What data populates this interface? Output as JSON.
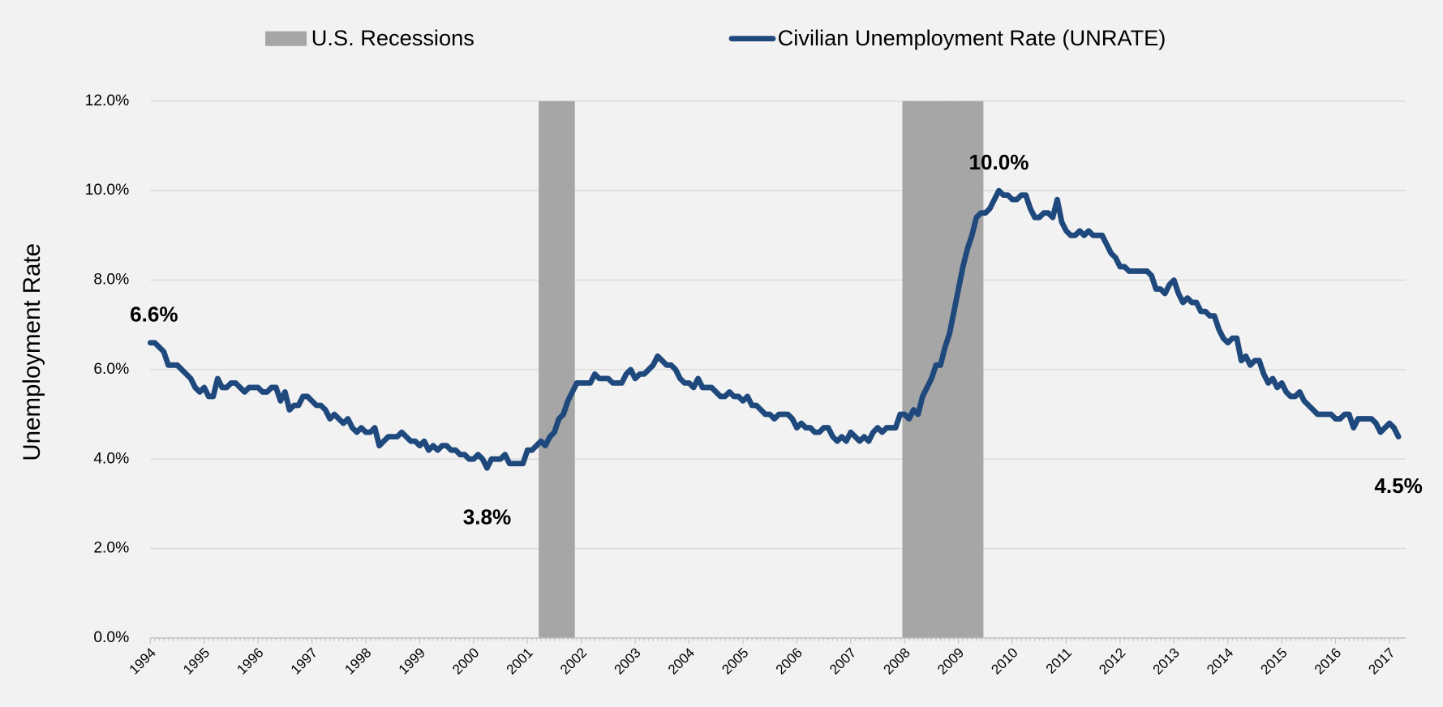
{
  "chart_data": {
    "type": "line",
    "y_label": "Unemployment Rate",
    "categories": [
      "1994",
      null,
      null,
      null,
      null,
      null,
      null,
      null,
      null,
      null,
      null,
      null,
      "1995",
      null,
      null,
      null,
      null,
      null,
      null,
      null,
      null,
      null,
      null,
      null,
      "1996",
      null,
      null,
      null,
      null,
      null,
      null,
      null,
      null,
      null,
      null,
      null,
      "1997",
      null,
      null,
      null,
      null,
      null,
      null,
      null,
      null,
      null,
      null,
      null,
      "1998",
      null,
      null,
      null,
      null,
      null,
      null,
      null,
      null,
      null,
      null,
      null,
      "1999",
      null,
      null,
      null,
      null,
      null,
      null,
      null,
      null,
      null,
      null,
      null,
      "2000",
      null,
      null,
      null,
      null,
      null,
      null,
      null,
      null,
      null,
      null,
      null,
      "2001",
      null,
      null,
      null,
      null,
      null,
      null,
      null,
      null,
      null,
      null,
      null,
      "2002",
      null,
      null,
      null,
      null,
      null,
      null,
      null,
      null,
      null,
      null,
      null,
      "2003",
      null,
      null,
      null,
      null,
      null,
      null,
      null,
      null,
      null,
      null,
      null,
      "2004",
      null,
      null,
      null,
      null,
      null,
      null,
      null,
      null,
      null,
      null,
      null,
      "2005",
      null,
      null,
      null,
      null,
      null,
      null,
      null,
      null,
      null,
      null,
      null,
      "2006",
      null,
      null,
      null,
      null,
      null,
      null,
      null,
      null,
      null,
      null,
      null,
      "2007",
      null,
      null,
      null,
      null,
      null,
      null,
      null,
      null,
      null,
      null,
      null,
      "2008",
      null,
      null,
      null,
      null,
      null,
      null,
      null,
      null,
      null,
      null,
      null,
      "2009",
      null,
      null,
      null,
      null,
      null,
      null,
      null,
      null,
      null,
      null,
      null,
      "2010",
      null,
      null,
      null,
      null,
      null,
      null,
      null,
      null,
      null,
      null,
      null,
      "2011",
      null,
      null,
      null,
      null,
      null,
      null,
      null,
      null,
      null,
      null,
      null,
      "2012",
      null,
      null,
      null,
      null,
      null,
      null,
      null,
      null,
      null,
      null,
      null,
      "2013",
      null,
      null,
      null,
      null,
      null,
      null,
      null,
      null,
      null,
      null,
      null,
      "2014",
      null,
      null,
      null,
      null,
      null,
      null,
      null,
      null,
      null,
      null,
      null,
      "2015",
      null,
      null,
      null,
      null,
      null,
      null,
      null,
      null,
      null,
      null,
      null,
      "2016",
      null,
      null,
      null,
      null,
      null,
      null,
      null,
      null,
      null,
      null,
      null,
      "2017",
      null,
      null
    ],
    "series": [
      {
        "name": "U.S. Recessions",
        "type": "bar",
        "color": "#a6a6a6",
        "values": [
          0,
          0,
          0,
          0,
          0,
          0,
          0,
          0,
          0,
          0,
          0,
          0,
          0,
          0,
          0,
          0,
          0,
          0,
          0,
          0,
          0,
          0,
          0,
          0,
          0,
          0,
          0,
          0,
          0,
          0,
          0,
          0,
          0,
          0,
          0,
          0,
          0,
          0,
          0,
          0,
          0,
          0,
          0,
          0,
          0,
          0,
          0,
          0,
          0,
          0,
          0,
          0,
          0,
          0,
          0,
          0,
          0,
          0,
          0,
          0,
          0,
          0,
          0,
          0,
          0,
          0,
          0,
          0,
          0,
          0,
          0,
          0,
          0,
          0,
          0,
          0,
          0,
          0,
          0,
          0,
          0,
          0,
          0,
          0,
          0,
          0,
          0,
          1,
          1,
          1,
          1,
          1,
          1,
          1,
          1,
          0,
          0,
          0,
          0,
          0,
          0,
          0,
          0,
          0,
          0,
          0,
          0,
          0,
          0,
          0,
          0,
          0,
          0,
          0,
          0,
          0,
          0,
          0,
          0,
          0,
          0,
          0,
          0,
          0,
          0,
          0,
          0,
          0,
          0,
          0,
          0,
          0,
          0,
          0,
          0,
          0,
          0,
          0,
          0,
          0,
          0,
          0,
          0,
          0,
          0,
          0,
          0,
          0,
          0,
          0,
          0,
          0,
          0,
          0,
          0,
          0,
          0,
          0,
          0,
          0,
          0,
          0,
          0,
          0,
          0,
          0,
          0,
          0,
          1,
          1,
          1,
          1,
          1,
          1,
          1,
          1,
          1,
          1,
          1,
          1,
          1,
          1,
          1,
          1,
          1,
          1,
          0,
          0,
          0,
          0,
          0,
          0,
          0,
          0,
          0,
          0,
          0,
          0,
          0,
          0,
          0,
          0,
          0,
          0,
          0,
          0,
          0,
          0,
          0,
          0,
          0,
          0,
          0,
          0,
          0,
          0,
          0,
          0,
          0,
          0,
          0,
          0,
          0,
          0,
          0,
          0,
          0,
          0,
          0,
          0,
          0,
          0,
          0,
          0,
          0,
          0,
          0,
          0,
          0,
          0,
          0,
          0,
          0,
          0,
          0,
          0,
          0,
          0,
          0,
          0,
          0,
          0,
          0,
          0,
          0,
          0,
          0,
          0,
          0,
          0,
          0,
          0,
          0,
          0,
          0,
          0,
          0,
          0,
          0,
          0,
          0,
          0,
          0,
          0,
          0,
          0,
          0,
          0,
          0
        ]
      },
      {
        "name": "Civilian Unemployment Rate (UNRATE)",
        "type": "line",
        "color": "#1f497d",
        "values": [
          6.6,
          6.6,
          6.5,
          6.4,
          6.1,
          6.1,
          6.1,
          6.0,
          5.9,
          5.8,
          5.6,
          5.5,
          5.6,
          5.4,
          5.4,
          5.8,
          5.6,
          5.6,
          5.7,
          5.7,
          5.6,
          5.5,
          5.6,
          5.6,
          5.6,
          5.5,
          5.5,
          5.6,
          5.6,
          5.3,
          5.5,
          5.1,
          5.2,
          5.2,
          5.4,
          5.4,
          5.3,
          5.2,
          5.2,
          5.1,
          4.9,
          5.0,
          4.9,
          4.8,
          4.9,
          4.7,
          4.6,
          4.7,
          4.6,
          4.6,
          4.7,
          4.3,
          4.4,
          4.5,
          4.5,
          4.5,
          4.6,
          4.5,
          4.4,
          4.4,
          4.3,
          4.4,
          4.2,
          4.3,
          4.2,
          4.3,
          4.3,
          4.2,
          4.2,
          4.1,
          4.1,
          4.0,
          4.0,
          4.1,
          4.0,
          3.8,
          4.0,
          4.0,
          4.0,
          4.1,
          3.9,
          3.9,
          3.9,
          3.9,
          4.2,
          4.2,
          4.3,
          4.4,
          4.3,
          4.5,
          4.6,
          4.9,
          5.0,
          5.3,
          5.5,
          5.7,
          5.7,
          5.7,
          5.7,
          5.9,
          5.8,
          5.8,
          5.8,
          5.7,
          5.7,
          5.7,
          5.9,
          6.0,
          5.8,
          5.9,
          5.9,
          6.0,
          6.1,
          6.3,
          6.2,
          6.1,
          6.1,
          6.0,
          5.8,
          5.7,
          5.7,
          5.6,
          5.8,
          5.6,
          5.6,
          5.6,
          5.5,
          5.4,
          5.4,
          5.5,
          5.4,
          5.4,
          5.3,
          5.4,
          5.2,
          5.2,
          5.1,
          5.0,
          5.0,
          4.9,
          5.0,
          5.0,
          5.0,
          4.9,
          4.7,
          4.8,
          4.7,
          4.7,
          4.6,
          4.6,
          4.7,
          4.7,
          4.5,
          4.4,
          4.5,
          4.4,
          4.6,
          4.5,
          4.4,
          4.5,
          4.4,
          4.6,
          4.7,
          4.6,
          4.7,
          4.7,
          4.7,
          5.0,
          5.0,
          4.9,
          5.1,
          5.0,
          5.4,
          5.6,
          5.8,
          6.1,
          6.1,
          6.5,
          6.8,
          7.3,
          7.8,
          8.3,
          8.7,
          9.0,
          9.4,
          9.5,
          9.5,
          9.6,
          9.8,
          10.0,
          9.9,
          9.9,
          9.8,
          9.8,
          9.9,
          9.9,
          9.6,
          9.4,
          9.4,
          9.5,
          9.5,
          9.4,
          9.8,
          9.3,
          9.1,
          9.0,
          9.0,
          9.1,
          9.0,
          9.1,
          9.0,
          9.0,
          9.0,
          8.8,
          8.6,
          8.5,
          8.3,
          8.3,
          8.2,
          8.2,
          8.2,
          8.2,
          8.2,
          8.1,
          7.8,
          7.8,
          7.7,
          7.9,
          8.0,
          7.7,
          7.5,
          7.6,
          7.5,
          7.5,
          7.3,
          7.3,
          7.2,
          7.2,
          6.9,
          6.7,
          6.6,
          6.7,
          6.7,
          6.2,
          6.3,
          6.1,
          6.2,
          6.2,
          5.9,
          5.7,
          5.8,
          5.6,
          5.7,
          5.5,
          5.4,
          5.4,
          5.5,
          5.3,
          5.2,
          5.1,
          5.0,
          5.0,
          5.0,
          5.0,
          4.9,
          4.9,
          5.0,
          5.0,
          4.7,
          4.9,
          4.9,
          4.9,
          4.9,
          4.8,
          4.6,
          4.7,
          4.8,
          4.7,
          4.5
        ],
        "value_labels": [
          "6.6%",
          null,
          null,
          null,
          null,
          null,
          null,
          null,
          null,
          null,
          null,
          null,
          null,
          null,
          null,
          null,
          null,
          null,
          null,
          null,
          null,
          null,
          null,
          null,
          null,
          null,
          null,
          null,
          null,
          null,
          null,
          null,
          null,
          null,
          null,
          null,
          null,
          null,
          null,
          null,
          null,
          null,
          null,
          null,
          null,
          null,
          null,
          null,
          null,
          null,
          null,
          null,
          null,
          null,
          null,
          null,
          null,
          null,
          null,
          null,
          null,
          null,
          null,
          null,
          null,
          null,
          null,
          null,
          null,
          null,
          null,
          null,
          null,
          null,
          null,
          "3.8%",
          null,
          null,
          null,
          null,
          null,
          null,
          null,
          null,
          null,
          null,
          null,
          null,
          null,
          null,
          null,
          null,
          null,
          null,
          null,
          null,
          null,
          null,
          null,
          null,
          null,
          null,
          null,
          null,
          null,
          null,
          null,
          null,
          null,
          null,
          null,
          null,
          null,
          null,
          null,
          null,
          null,
          null,
          null,
          null,
          null,
          null,
          null,
          null,
          null,
          null,
          null,
          null,
          null,
          null,
          null,
          null,
          null,
          null,
          null,
          null,
          null,
          null,
          null,
          null,
          null,
          null,
          null,
          null,
          null,
          null,
          null,
          null,
          null,
          null,
          null,
          null,
          null,
          null,
          null,
          null,
          null,
          null,
          null,
          null,
          null,
          null,
          null,
          null,
          null,
          null,
          null,
          null,
          null,
          null,
          null,
          null,
          null,
          null,
          null,
          null,
          null,
          null,
          null,
          null,
          null,
          null,
          null,
          null,
          null,
          null,
          null,
          null,
          null,
          "10.0%",
          null,
          null,
          null,
          null,
          null,
          null,
          null,
          null,
          null,
          null,
          null,
          null,
          null,
          null,
          null,
          null,
          null,
          null,
          null,
          null,
          null,
          null,
          null,
          null,
          null,
          null,
          null,
          null,
          null,
          null,
          null,
          null,
          null,
          null,
          null,
          null,
          null,
          null,
          null,
          null,
          null,
          null,
          null,
          null,
          null,
          null,
          null,
          null,
          null,
          null,
          null,
          null,
          null,
          null,
          null,
          null,
          null,
          null,
          null,
          null,
          null,
          null,
          null,
          null,
          null,
          null,
          null,
          null,
          null,
          null,
          null,
          null,
          null,
          null,
          null,
          null,
          null,
          null,
          null,
          null,
          null,
          null,
          null,
          null,
          null,
          null,
          null,
          null,
          "4.5%"
        ]
      }
    ],
    "ylim": [
      0,
      12
    ],
    "yticks": [
      {
        "value": 0,
        "label": "0.0%"
      },
      {
        "value": 2,
        "label": "2.0%"
      },
      {
        "value": 4,
        "label": "4.0%"
      },
      {
        "value": 6,
        "label": "6.0%"
      },
      {
        "value": 8,
        "label": "8.0%"
      },
      {
        "value": 10,
        "label": "10.0%"
      },
      {
        "value": 12,
        "label": "12.0%"
      }
    ],
    "grid": true,
    "legend": "top"
  }
}
